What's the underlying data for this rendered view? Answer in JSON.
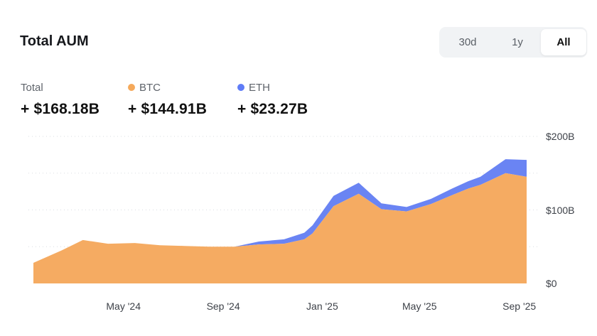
{
  "header": {
    "title": "Total AUM"
  },
  "range_toggle": [
    {
      "label": "30d",
      "active": false
    },
    {
      "label": "1y",
      "active": false
    },
    {
      "label": "All",
      "active": true
    }
  ],
  "stats": [
    {
      "label": "Total",
      "value": "+ $168.18B"
    },
    {
      "label": "BTC",
      "value": "+ $144.91B",
      "dot_color": "#f5a95b"
    },
    {
      "label": "ETH",
      "value": "+ $23.27B",
      "dot_color": "#5f7cf7"
    }
  ],
  "colors": {
    "btc": "#f5ab62",
    "eth": "#6a84f3"
  },
  "chart_data": {
    "type": "area",
    "stacked": true,
    "x": [
      "2024-01-11",
      "2024-02-15",
      "2024-03-12",
      "2024-04-12",
      "2024-05-15",
      "2024-06-15",
      "2024-07-15",
      "2024-08-15",
      "2024-09-15",
      "2024-10-15",
      "2024-11-15",
      "2024-12-10",
      "2024-12-20",
      "2025-01-15",
      "2025-02-15",
      "2025-03-15",
      "2025-04-15",
      "2025-05-15",
      "2025-06-10",
      "2025-06-30",
      "2025-07-15",
      "2025-08-15",
      "2025-09-10"
    ],
    "series": [
      {
        "name": "BTC",
        "values": [
          28,
          45,
          59,
          54,
          55,
          52,
          51,
          50,
          50,
          53,
          54,
          60,
          68,
          105,
          122,
          101,
          98,
          108,
          120,
          129,
          134,
          150,
          145
        ]
      },
      {
        "name": "ETH",
        "values": [
          0,
          0,
          0,
          0,
          0,
          0,
          0,
          0,
          0,
          4,
          6,
          9,
          11,
          14,
          15,
          8,
          6,
          7,
          9,
          10,
          11,
          19,
          23
        ]
      }
    ],
    "x_ticks": [
      "May '24",
      "Sep '24",
      "Jan '25",
      "May '25",
      "Sep '25"
    ],
    "y_ticks": [
      "$200B",
      "$100B",
      "$0"
    ],
    "ylim": [
      0,
      200
    ],
    "grid": true
  }
}
